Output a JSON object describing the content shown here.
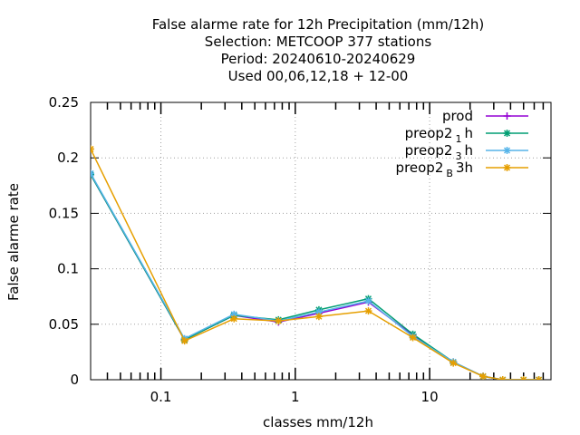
{
  "chart_data": {
    "type": "line",
    "title_lines": [
      "False alarme rate  for 12h Precipitation (mm/12h)",
      "Selection: METCOOP    377 stations",
      "Period: 20240610-20240629",
      "Used  00,06,12,18 + 12-00"
    ],
    "xlabel": "classes mm/12h",
    "ylabel": "False alarme rate",
    "x_scale": "log",
    "xlim": [
      0.03,
      80
    ],
    "ylim": [
      0,
      0.25
    ],
    "grid": true,
    "legend_position": "top-right",
    "x_ticks": [
      {
        "value": 0.1,
        "label": "0.1"
      },
      {
        "value": 1,
        "label": "1"
      },
      {
        "value": 10,
        "label": "10"
      }
    ],
    "y_ticks": [
      {
        "value": 0,
        "label": "0"
      },
      {
        "value": 0.05,
        "label": "0.05"
      },
      {
        "value": 0.1,
        "label": "0.1"
      },
      {
        "value": 0.15,
        "label": "0.15"
      },
      {
        "value": 0.2,
        "label": "0.2"
      },
      {
        "value": 0.25,
        "label": "0.25"
      }
    ],
    "x": [
      0.03,
      0.15,
      0.35,
      0.75,
      1.5,
      3.5,
      7.5,
      15,
      25,
      35,
      50,
      65
    ],
    "series": [
      {
        "name": "prod",
        "sub": "",
        "suffix": "",
        "color": "#9400d3",
        "marker": "plus",
        "values": [
          0.185,
          0.036,
          0.058,
          0.052,
          0.06,
          0.07,
          0.04,
          0.016,
          0.003,
          0.0,
          0.0,
          0.0
        ]
      },
      {
        "name": "preop2",
        "sub": "1",
        "suffix": "h",
        "color": "#009e73",
        "marker": "cross",
        "values": [
          0.185,
          0.036,
          0.058,
          0.054,
          0.063,
          0.073,
          0.041,
          0.016,
          0.003,
          0.0,
          0.0,
          0.0
        ]
      },
      {
        "name": "preop2",
        "sub": "3",
        "suffix": "h",
        "color": "#56b4e9",
        "marker": "star",
        "values": [
          0.186,
          0.037,
          0.059,
          0.053,
          0.061,
          0.071,
          0.039,
          0.016,
          0.003,
          0.0,
          0.0,
          0.0
        ]
      },
      {
        "name": "preop2",
        "sub": "B",
        "suffix": "3h",
        "color": "#e69f00",
        "marker": "star",
        "values": [
          0.208,
          0.035,
          0.055,
          0.053,
          0.057,
          0.062,
          0.038,
          0.015,
          0.003,
          0.0,
          0.0,
          0.0
        ]
      }
    ]
  }
}
